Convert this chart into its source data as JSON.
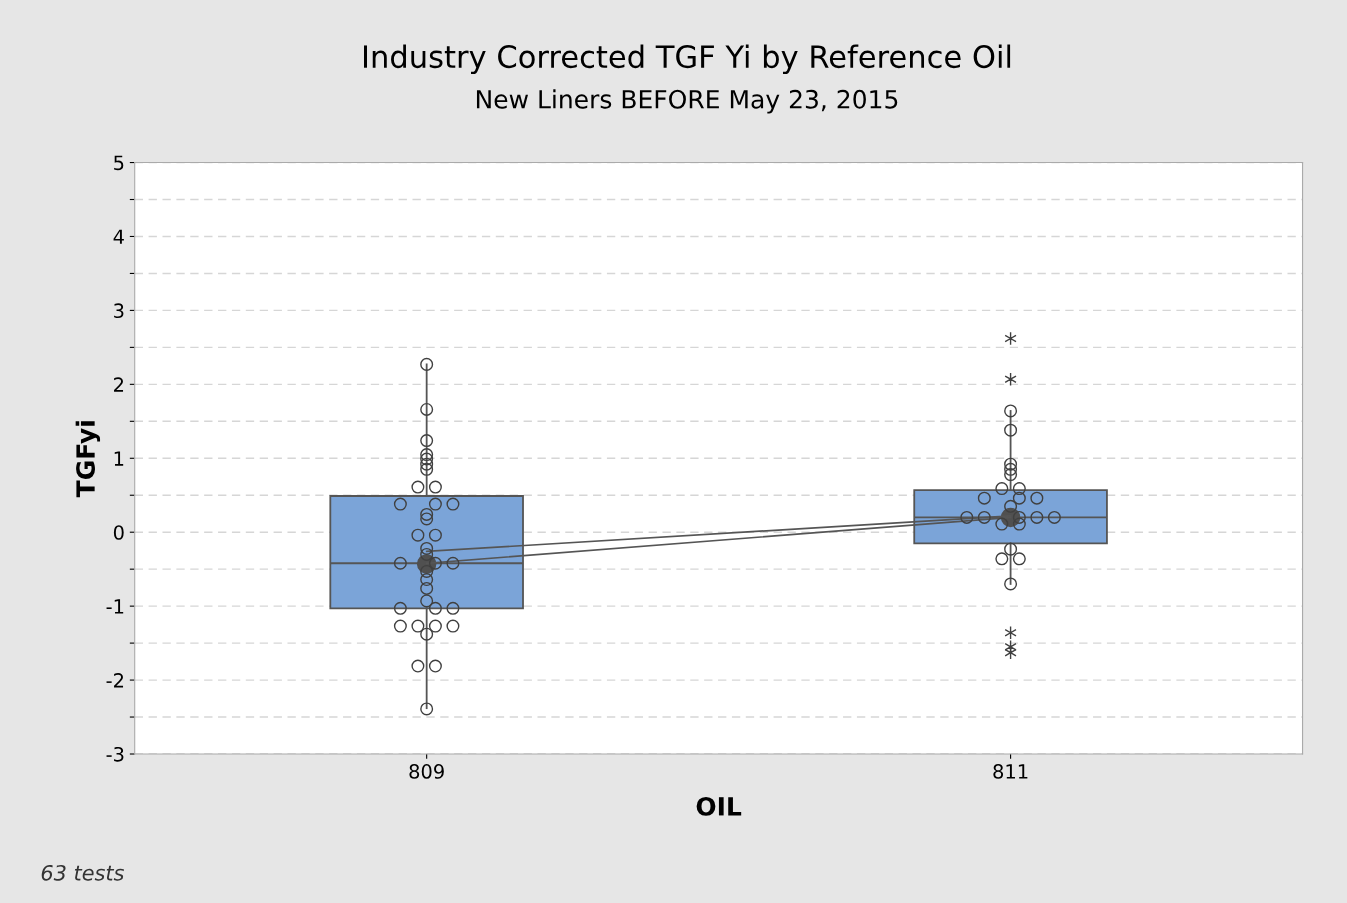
{
  "chart_data": {
    "type": "box",
    "title": "Industry Corrected TGF Yi by Reference Oil",
    "subtitle": "New Liners BEFORE May 23, 2015",
    "xlabel": "OIL",
    "ylabel": "TGFyi",
    "categories": [
      "809",
      "811"
    ],
    "series": [
      {
        "color": "#7ba4d8",
        "boxes": [
          {
            "low": -2.38,
            "q1": -1.03,
            "median": -0.42,
            "q3": 0.49,
            "high": 2.27,
            "mean": -0.43
          },
          {
            "low": -0.7,
            "q1": -0.15,
            "median": 0.2,
            "q3": 0.57,
            "high": 1.64,
            "mean": 0.2,
            "outliers": [
              2.62,
              2.07,
              -1.36,
              -1.55,
              -1.63
            ]
          }
        ]
      },
      {
        "type": "scatter",
        "color": "#404040",
        "marker": "circle",
        "x": [
          "809",
          "809",
          "809",
          "809",
          "809",
          "809",
          "809",
          "809",
          "809",
          "809",
          "809",
          "809",
          "809",
          "809",
          "809",
          "809",
          "809",
          "809",
          "809",
          "809",
          "809",
          "809",
          "809",
          "809",
          "809",
          "809",
          "809",
          "809",
          "809",
          "809",
          "809",
          "809",
          "809",
          "809",
          "809",
          "809",
          "811",
          "811",
          "811",
          "811",
          "811",
          "811",
          "811",
          "811",
          "811",
          "811",
          "811",
          "811",
          "811",
          "811",
          "811",
          "811",
          "811",
          "811",
          "811",
          "811",
          "811",
          "811"
        ],
        "values": [
          2.27,
          1.66,
          1.24,
          1.05,
          0.99,
          0.92,
          0.85,
          0.61,
          0.61,
          0.38,
          0.38,
          0.38,
          0.24,
          0.18,
          -0.04,
          -0.04,
          -0.22,
          -0.3,
          -0.42,
          -0.42,
          -0.42,
          -0.53,
          -0.64,
          -0.76,
          -0.93,
          -1.03,
          -1.03,
          -1.03,
          -1.27,
          -1.27,
          -1.27,
          -1.27,
          -1.38,
          -1.81,
          -1.81,
          -2.39,
          1.64,
          1.38,
          0.92,
          0.85,
          0.78,
          0.59,
          0.59,
          0.46,
          0.46,
          0.46,
          0.35,
          0.2,
          0.2,
          0.2,
          0.2,
          0.2,
          0.11,
          0.11,
          -0.23,
          -0.36,
          -0.36,
          -0.7
        ]
      },
      {
        "type": "line",
        "color": "#555555",
        "values": [
          -0.26,
          0.22
        ]
      },
      {
        "type": "line",
        "color": "#555555",
        "values": [
          -0.42,
          0.2
        ]
      }
    ],
    "ylim": [
      -3,
      5
    ],
    "yticks": [
      -3,
      {
        "value": -2.5,
        "label": null
      },
      -2,
      {
        "value": -1.5,
        "label": null
      },
      -1,
      {
        "value": -0.5,
        "label": null
      },
      0,
      {
        "value": 0.5,
        "label": null
      },
      1,
      {
        "value": 1.5,
        "label": null
      },
      2,
      {
        "value": 2.5,
        "label": null
      },
      3,
      {
        "value": 3.5,
        "label": null
      },
      4,
      {
        "value": 4.5,
        "label": null
      },
      5
    ],
    "grid": "y",
    "line_style": "solid",
    "annotations": [
      "63 tests"
    ]
  }
}
